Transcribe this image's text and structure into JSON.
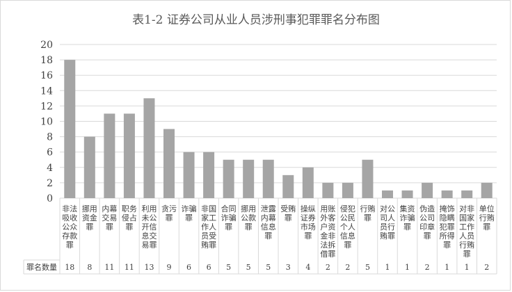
{
  "chart_data": {
    "type": "bar",
    "title": "表1-2 证券公司从业人员涉刑事犯罪罪名分布图",
    "xlabel": "",
    "ylabel": "",
    "ylim": [
      0,
      20
    ],
    "yticks": [
      0,
      2,
      4,
      6,
      8,
      10,
      12,
      14,
      16,
      18,
      20
    ],
    "grid": true,
    "legend": "none",
    "bar_color": "#a5a5a5",
    "grid_color": "#d9d9d9",
    "categories": [
      [
        "非法",
        "吸收",
        "公众",
        "存款",
        "罪"
      ],
      [
        "挪用",
        "资金",
        "罪"
      ],
      [
        "内幕",
        "交易",
        "罪"
      ],
      [
        "职务",
        "侵占",
        "罪"
      ],
      [
        "利用",
        "未公",
        "开信",
        "息交",
        "易罪"
      ],
      [
        "贪污",
        "罪"
      ],
      [
        "诈骗",
        "罪"
      ],
      [
        "非国",
        "家工",
        "作人",
        "员受",
        "贿罪"
      ],
      [
        "合同",
        "诈骗",
        "罪"
      ],
      [
        "挪用",
        "公款",
        "罪"
      ],
      [
        "泄露",
        "内幕",
        "信息",
        "罪"
      ],
      [
        "受贿",
        "罪"
      ],
      [
        "操纵",
        "证券",
        "市场",
        "罪"
      ],
      [
        "用账",
        "外客",
        "户资",
        "金非",
        "法拆",
        "借罪"
      ],
      [
        "侵犯",
        "公民",
        "个人",
        "信息",
        "罪"
      ],
      [
        "行贿",
        "罪"
      ],
      [
        "对公",
        "司人",
        "员行",
        "贿罪"
      ],
      [
        "集资",
        "诈骗",
        "罪"
      ],
      [
        "伪造",
        "公司",
        "印章",
        "罪"
      ],
      [
        "掩饰",
        "隐瞒",
        "犯罪",
        "所得",
        "罪"
      ],
      [
        "对非",
        "国家",
        "工作",
        "人员",
        "行贿",
        "罪"
      ],
      [
        "单位",
        "行贿",
        "罪"
      ]
    ],
    "values": [
      18,
      8,
      11,
      11,
      13,
      9,
      6,
      6,
      5,
      5,
      5,
      3,
      4,
      2,
      2,
      5,
      1,
      1,
      2,
      1,
      1,
      2
    ],
    "table_row_label": "罪名数量",
    "table_values": [
      "18",
      "8",
      "11",
      "11",
      "13",
      "9",
      "6",
      "6",
      "5",
      "5",
      "5",
      "3",
      "4",
      "2",
      "2",
      "5",
      "1",
      "1",
      "2",
      "1",
      "1",
      "2"
    ]
  }
}
